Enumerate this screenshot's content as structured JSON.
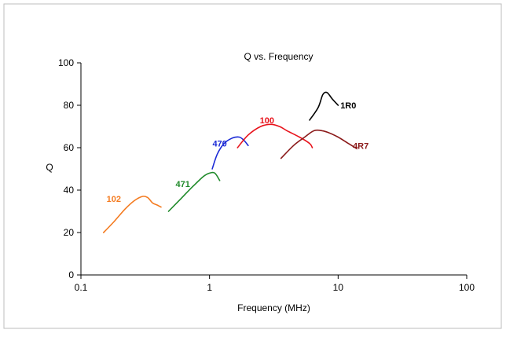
{
  "chart_data": {
    "type": "line",
    "title": "Q vs. Frequency",
    "xlabel": "Frequency (MHz)",
    "ylabel": "Q",
    "x_scale": "log",
    "xlim": [
      0.1,
      100
    ],
    "ylim": [
      0,
      100
    ],
    "x_ticks": [
      0.1,
      1,
      10,
      100
    ],
    "x_tick_labels": [
      "0.1",
      "1",
      "10",
      "100"
    ],
    "y_ticks": [
      0,
      20,
      40,
      60,
      80,
      100
    ],
    "y_tick_labels": [
      "0",
      "20",
      "40",
      "60",
      "80",
      "100"
    ],
    "grid": false,
    "legend": "none",
    "series": [
      {
        "name": "102",
        "color": "#f47b20",
        "label_at": [
          0.18,
          36
        ],
        "points": [
          [
            0.15,
            20
          ],
          [
            0.18,
            25
          ],
          [
            0.22,
            31
          ],
          [
            0.26,
            35
          ],
          [
            0.3,
            37
          ],
          [
            0.33,
            36.5
          ],
          [
            0.36,
            34
          ],
          [
            0.39,
            33
          ],
          [
            0.42,
            32
          ]
        ]
      },
      {
        "name": "471",
        "color": "#1f8a2a",
        "label_at": [
          0.62,
          43
        ],
        "points": [
          [
            0.48,
            30
          ],
          [
            0.6,
            36
          ],
          [
            0.75,
            42
          ],
          [
            0.9,
            46.5
          ],
          [
            1.0,
            48
          ],
          [
            1.1,
            48
          ],
          [
            1.2,
            44.5
          ]
        ]
      },
      {
        "name": "470",
        "color": "#1c2bd6",
        "label_at": [
          1.2,
          62
        ],
        "points": [
          [
            1.05,
            50
          ],
          [
            1.15,
            57
          ],
          [
            1.3,
            62
          ],
          [
            1.5,
            64.5
          ],
          [
            1.7,
            65
          ],
          [
            1.85,
            63.5
          ],
          [
            2.0,
            61
          ]
        ]
      },
      {
        "name": "100",
        "color": "#e8121b",
        "label_at": [
          2.8,
          73
        ],
        "points": [
          [
            1.65,
            60
          ],
          [
            2.0,
            66
          ],
          [
            2.5,
            70
          ],
          [
            3.0,
            71
          ],
          [
            3.5,
            70
          ],
          [
            4.0,
            68
          ],
          [
            5.0,
            65
          ],
          [
            6.0,
            62
          ],
          [
            6.3,
            60
          ]
        ]
      },
      {
        "name": "4R7",
        "color": "#8b1a1a",
        "label_at": [
          15,
          61
        ],
        "points": [
          [
            3.6,
            55
          ],
          [
            4.5,
            61
          ],
          [
            5.5,
            65
          ],
          [
            6.5,
            68
          ],
          [
            7.5,
            68
          ],
          [
            8.5,
            67
          ],
          [
            10,
            65
          ],
          [
            12,
            62
          ],
          [
            14,
            59.5
          ]
        ]
      },
      {
        "name": "1R0",
        "color": "#000000",
        "label_at": [
          12,
          80
        ],
        "points": [
          [
            6.0,
            73
          ],
          [
            7.0,
            79
          ],
          [
            7.6,
            85
          ],
          [
            8.2,
            86
          ],
          [
            9.0,
            83
          ],
          [
            10,
            80
          ]
        ]
      }
    ]
  }
}
